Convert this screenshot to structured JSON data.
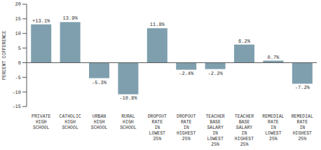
{
  "chart_data": {
    "type": "bar",
    "y_label": "PERCENT DIFFERENCE",
    "categories": [
      "PRIVATE HIGH SCHOOL",
      "CATHOLIC HIGH SCHOOL",
      "URBAN HIGH SCHOOL",
      "RURAL HIGH SCHOOL",
      "DROPOUT RATE IN LOWEST 25%",
      "DROPOUT RATE IN HIGHEST 25%",
      "TEACHER BASE SALARY IN LOWEST 25%",
      "TEACHER BASE SALARY IN HIGHEST 25%",
      "REMEDIAL RATE IN LOWEST 25%",
      "REMEDIAL RATE IN HIGHEST 25%"
    ],
    "values": [
      13.1,
      13.9,
      -5.3,
      -10.8,
      11.8,
      -2.4,
      -2.2,
      6.2,
      0.7,
      -7.2
    ],
    "value_labels": [
      "+13.1%",
      "13.9%",
      "-5.3%",
      "-10.8%",
      "11.8%",
      "-2.4%",
      "-2.2%",
      "6.2%",
      "0.7%",
      "-7.2%"
    ],
    "data_labels": true,
    "color": "#7f9fae",
    "ylim": [
      -15,
      20
    ],
    "yticks": [
      -15,
      -10,
      -5,
      0,
      5,
      10,
      15,
      20
    ],
    "grid": false
  }
}
